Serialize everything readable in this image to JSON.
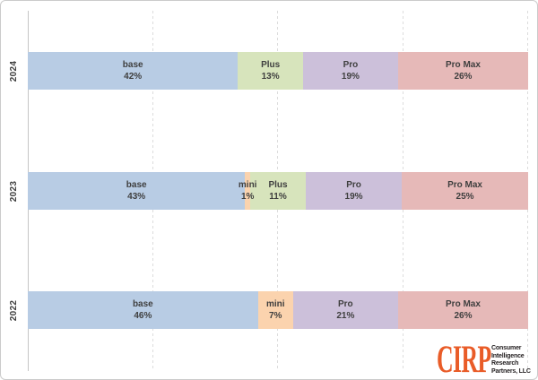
{
  "frame": {
    "background": "#ffffff",
    "border_color": "#cbcbcb"
  },
  "chart_data": {
    "type": "bar",
    "variant": "100-percent-stacked-horizontal",
    "title": "",
    "xlabel": "",
    "ylabel": "",
    "categories": [
      "2024",
      "2023",
      "2022"
    ],
    "xlim": [
      0,
      100
    ],
    "gridlines_pct": [
      25,
      50,
      75,
      100
    ],
    "grid_style": "dashed-vertical",
    "axis_line_color": "#c6c6c6",
    "gridline_color": "#dcdcdc",
    "label_text_color": "#3f3f3f",
    "year_label_color": "#404040",
    "colors": {
      "base": "#b8cce4",
      "mini": "#fbd3ae",
      "Plus": "#d7e4bc",
      "Pro": "#ccc0da",
      "Pro Max": "#e6b9b8"
    },
    "rows": [
      {
        "year": "2024",
        "segments": [
          {
            "name": "base",
            "pct": 42
          },
          {
            "name": "Plus",
            "pct": 13
          },
          {
            "name": "Pro",
            "pct": 19
          },
          {
            "name": "Pro Max",
            "pct": 26
          }
        ]
      },
      {
        "year": "2023",
        "segments": [
          {
            "name": "base",
            "pct": 43
          },
          {
            "name": "mini",
            "pct": 1
          },
          {
            "name": "Plus",
            "pct": 11
          },
          {
            "name": "Pro",
            "pct": 19
          },
          {
            "name": "Pro Max",
            "pct": 25
          }
        ]
      },
      {
        "year": "2022",
        "segments": [
          {
            "name": "base",
            "pct": 46
          },
          {
            "name": "mini",
            "pct": 7
          },
          {
            "name": "Pro",
            "pct": 21
          },
          {
            "name": "Pro Max",
            "pct": 26
          }
        ]
      }
    ]
  },
  "logo": {
    "monogram": "CIRP",
    "monogram_color": "#e95c28",
    "lines": [
      "Consumer",
      "Intelligence",
      "Research",
      "Partners, LLC"
    ],
    "text_color": "#231f20"
  }
}
